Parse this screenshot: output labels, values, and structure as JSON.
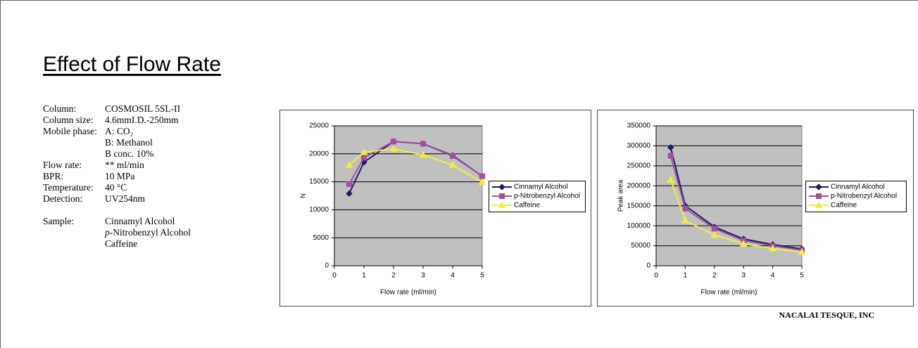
{
  "title": "Effect of Flow Rate",
  "conditions": [
    {
      "label": "Column:",
      "values": [
        "COSMOSIL 5SL-II"
      ]
    },
    {
      "label": "Column size:",
      "values": [
        "4.6mmI.D.-250mm"
      ]
    },
    {
      "label": "Mobile phase:",
      "values": [
        "A: CO₂",
        "B: Methanol",
        "B conc. 10%"
      ]
    },
    {
      "label": "Flow rate:",
      "values": [
        "** ml/min"
      ]
    },
    {
      "label": "BPR:",
      "values": [
        "10 MPa"
      ]
    },
    {
      "label": "Temperature:",
      "values": [
        "40 °C"
      ]
    },
    {
      "label": "Detection:",
      "values": [
        "UV254nm"
      ]
    }
  ],
  "sample": {
    "label": "Sample:",
    "values": [
      "Cinnamyl Alcohol",
      "p-Nitrobenzyl Alcohol",
      "Caffeine"
    ]
  },
  "chart_data": [
    {
      "type": "line",
      "x_label": "Flow rate (ml/min)",
      "y_label": "N",
      "x": [
        0.5,
        1,
        2,
        3,
        4,
        5
      ],
      "xlim": [
        0,
        5
      ],
      "xticks": [
        0,
        1,
        2,
        3,
        4,
        5
      ],
      "ylim": [
        0,
        25000
      ],
      "yticks": [
        0,
        5000,
        10000,
        15000,
        20000,
        25000
      ],
      "grid": true,
      "legend": "right",
      "series": [
        {
          "name": "Cinnamyl Alcohol",
          "color": "#1c1c64",
          "marker": "diamond",
          "values": [
            12900,
            18500,
            22200,
            21800,
            19700,
            16000
          ]
        },
        {
          "name": "p-Nitrobenzyl Alcohol",
          "color": "#a64ca6",
          "marker": "square",
          "values": [
            14600,
            19300,
            22200,
            21800,
            19600,
            16000
          ]
        },
        {
          "name": "Caffeine",
          "color": "#f0f03c",
          "marker": "triangle",
          "values": [
            18000,
            20300,
            20900,
            19800,
            18000,
            14900
          ]
        }
      ]
    },
    {
      "type": "line",
      "x_label": "Flow rate (ml/min)",
      "y_label": "Peak area",
      "x": [
        0.5,
        1,
        2,
        3,
        4,
        5
      ],
      "xlim": [
        0,
        5
      ],
      "xticks": [
        0,
        1,
        2,
        3,
        4,
        5
      ],
      "ylim": [
        0,
        350000
      ],
      "yticks": [
        0,
        50000,
        100000,
        150000,
        200000,
        250000,
        300000,
        350000
      ],
      "grid": true,
      "legend": "right",
      "series": [
        {
          "name": "Cinnamyl Alcohol",
          "color": "#1c1c64",
          "marker": "diamond",
          "values": [
            296000,
            150000,
            97000,
            67000,
            53000,
            42000
          ]
        },
        {
          "name": "p-Nitrobenzyl Alcohol",
          "color": "#a64ca6",
          "marker": "square",
          "values": [
            275000,
            143000,
            93000,
            63000,
            50000,
            39000
          ]
        },
        {
          "name": "Caffeine",
          "color": "#f0f03c",
          "marker": "triangle",
          "values": [
            215000,
            113000,
            77000,
            55000,
            43000,
            34000
          ]
        }
      ]
    }
  ],
  "footer": "NACALAI TESQUE, INC"
}
